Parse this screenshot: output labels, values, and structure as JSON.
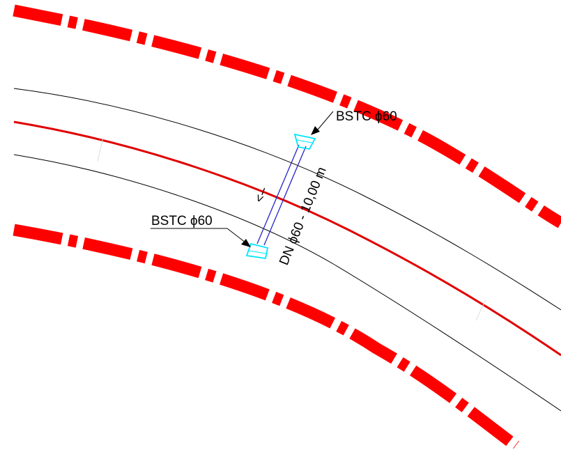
{
  "drawing": {
    "culvert_label_top": "BSTC ϕ60",
    "culvert_label_bottom": "BSTC ϕ60",
    "pipe_dimension": "DN ϕ60 - 10,00 m",
    "flow_arrow": "<--"
  },
  "colors": {
    "right_of_way": "#ff0000",
    "centerline": "#e00000",
    "road_edge": "#000000",
    "culvert_pipe": "#2222cc",
    "culvert_head": "#00e5ff"
  }
}
